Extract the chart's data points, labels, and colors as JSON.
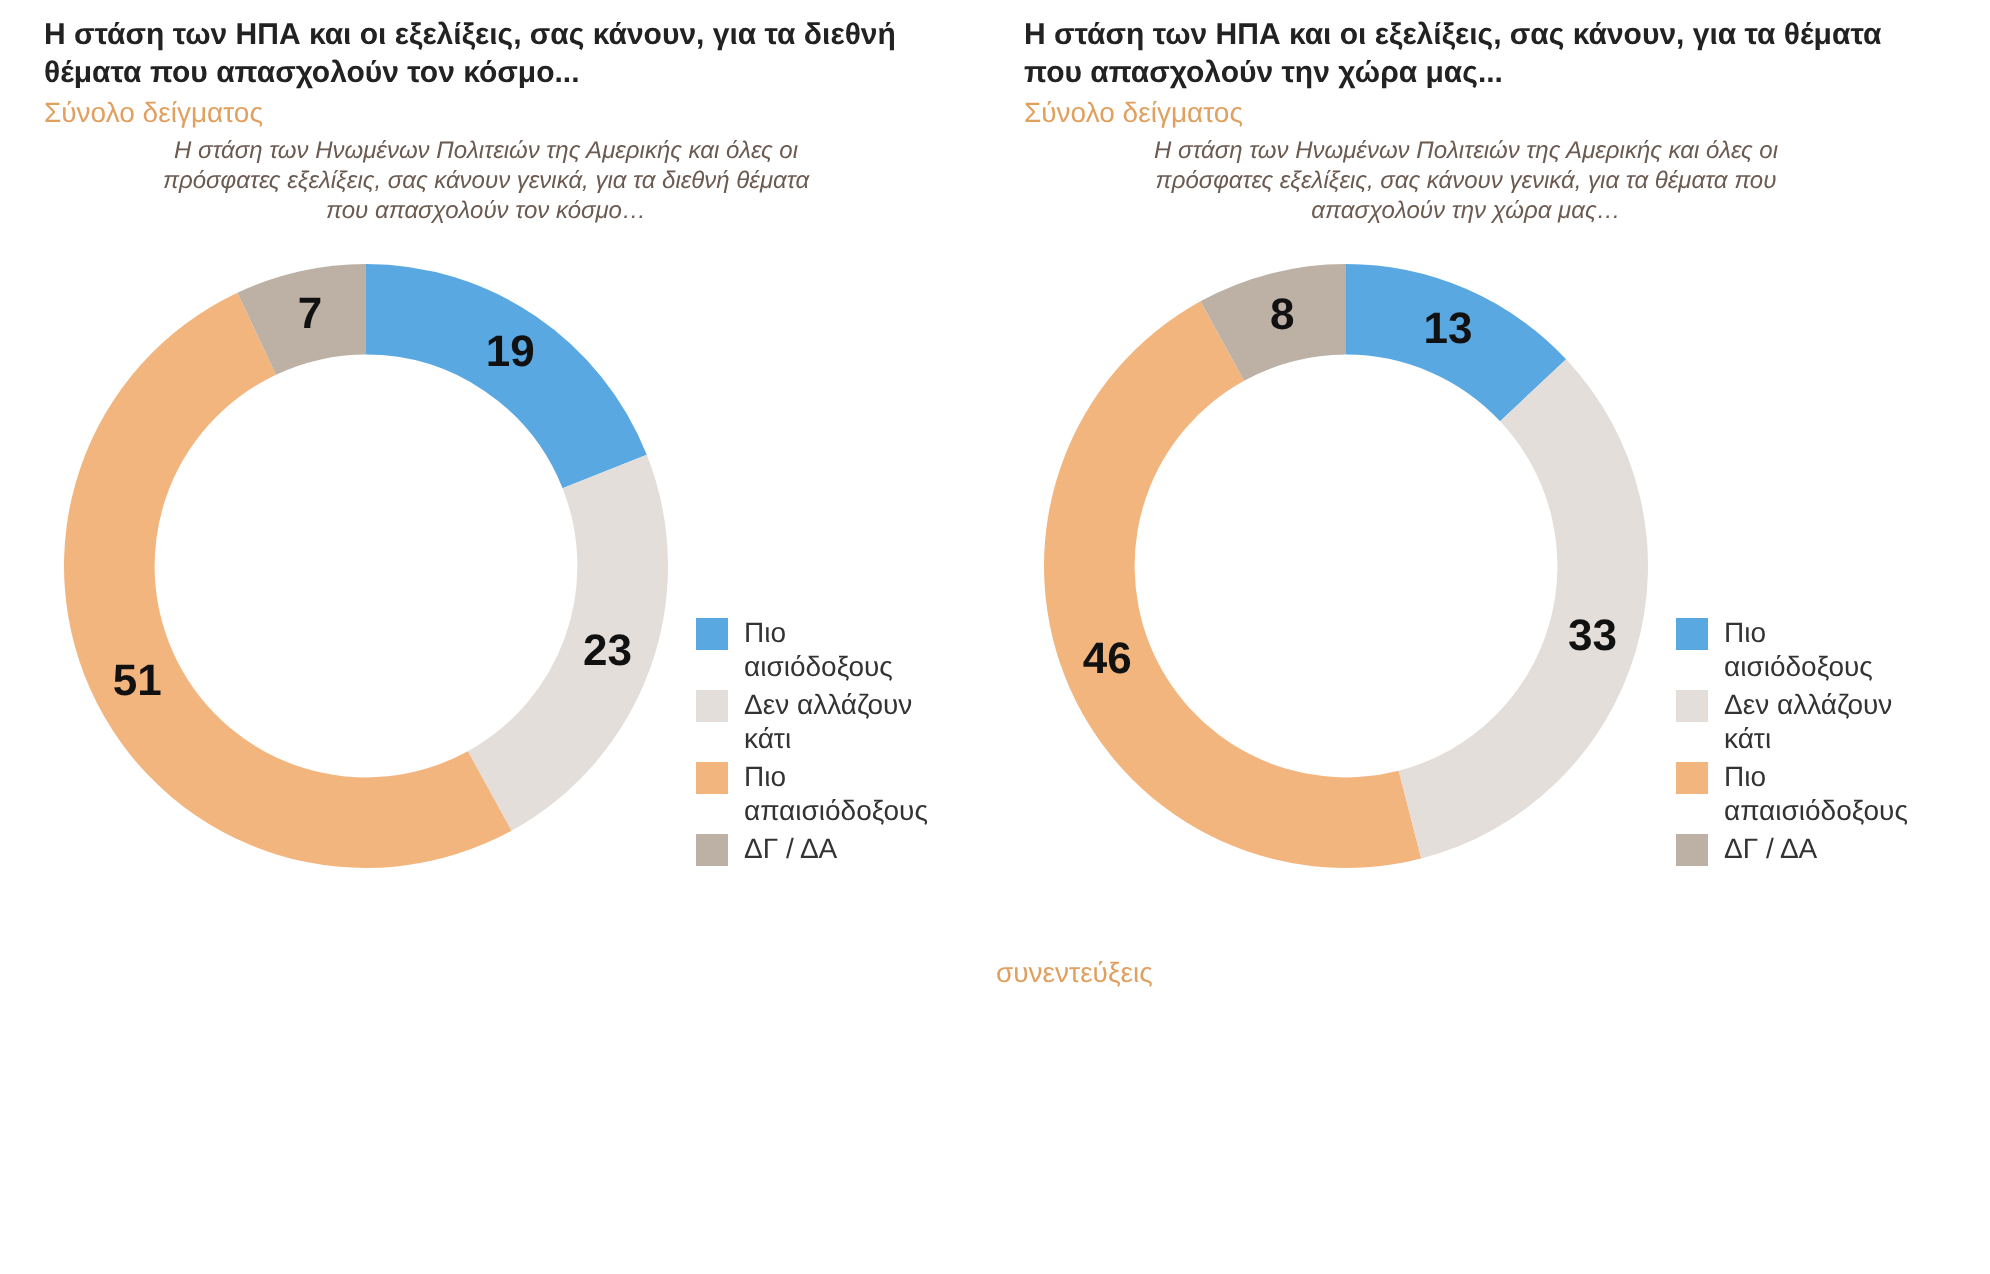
{
  "chart_data": [
    {
      "type": "donut",
      "title": "Η στάση των ΗΠΑ και οι εξελίξεις, σας κάνουν, για τα διεθνή θέματα που απασχολούν τον κόσμο...",
      "subtitle": "Σύνολο δείγματος",
      "annotations": [
        "Η στάση των Ηνωμένων Πολιτειών της Αμερικής και όλες οι πρόσφατες εξελίξεις, σας κάνουν γενικά, για τα διεθνή θέματα που απασχολούν τον κόσμο…"
      ],
      "categories": [
        "Πιο αισιόδοξους",
        "Δεν αλλάζουν κάτι",
        "Πιο απαισιόδοξους",
        "ΔΓ / ΔΑ"
      ],
      "values": [
        19,
        23,
        51,
        7
      ],
      "colors": [
        "#5aa8e2",
        "#e3ded9",
        "#f3b57e",
        "#bcb1a4"
      ],
      "data_labels": true,
      "legend": "bottom right"
    },
    {
      "type": "donut",
      "title": "Η στάση των ΗΠΑ και οι εξελίξεις, σας κάνουν, για τα θέματα που απασχολούν την χώρα μας...",
      "subtitle": "Σύνολο δείγματος",
      "annotations": [
        "Η στάση των Ηνωμένων Πολιτειών της Αμερικής και όλες οι πρόσφατες εξελίξεις, σας κάνουν γενικά, για τα θέματα που απασχολούν την χώρα μας…",
        "συνεντεύξεις"
      ],
      "categories": [
        "Πιο αισιόδοξους",
        "Δεν αλλάζουν κάτι",
        "Πιο απαισιόδοξους",
        "ΔΓ / ΔΑ"
      ],
      "values": [
        13,
        33,
        46,
        8
      ],
      "colors": [
        "#5aa8e2",
        "#e3ded9",
        "#f3b57e",
        "#bcb1a4"
      ],
      "data_labels": true,
      "legend": "bottom right"
    }
  ]
}
